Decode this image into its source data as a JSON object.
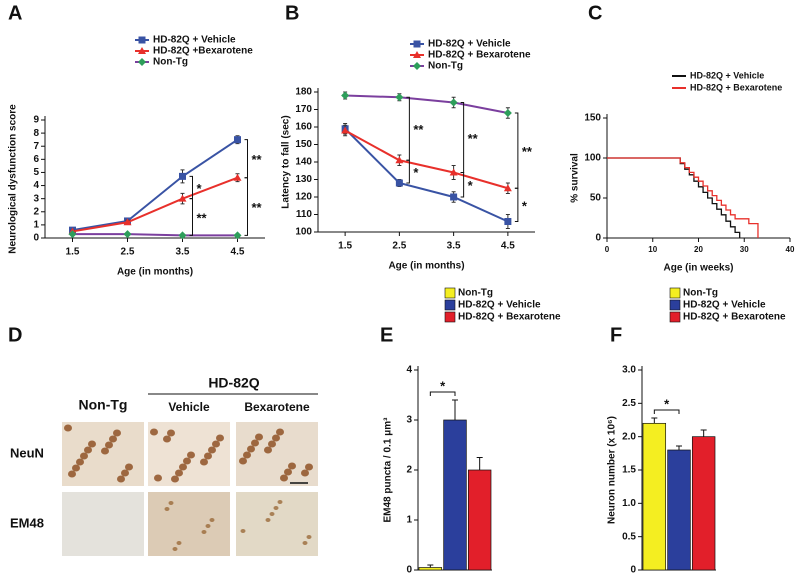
{
  "chart_data": [
    {
      "panel": "A",
      "type": "line",
      "ylabel": "Neurological dysfunction score",
      "xlabel": "Age (in months)",
      "categories": [
        "1.5",
        "2.5",
        "3.5",
        "4.5"
      ],
      "ylim": [
        0,
        9
      ],
      "yticks": [
        0,
        1,
        2,
        3,
        4,
        5,
        6,
        7,
        8,
        9
      ],
      "series": [
        {
          "name": "HD-82Q + Vehicle",
          "color": "#3953a4",
          "marker": "square",
          "marker_color": "#3953a4",
          "values": [
            0.6,
            1.3,
            4.7,
            7.5
          ],
          "errors": [
            0.15,
            0.2,
            0.5,
            0.3
          ]
        },
        {
          "name": "HD-82Q +Bexarotene",
          "color": "#e8302b",
          "marker": "triangle",
          "marker_color": "#e8302b",
          "values": [
            0.5,
            1.2,
            3.0,
            4.6
          ],
          "errors": [
            0.1,
            0.15,
            0.4,
            0.3
          ]
        },
        {
          "name": "Non-Tg",
          "color": "#7b3f9e",
          "marker": "diamond",
          "marker_color": "#2e9e5b",
          "values": [
            0.3,
            0.3,
            0.2,
            0.2
          ],
          "errors": [
            0.05,
            0.05,
            0.05,
            0.05
          ]
        }
      ],
      "annotations": [
        "*",
        "**",
        "**",
        "**"
      ]
    },
    {
      "panel": "B",
      "type": "line",
      "ylabel": "Latency to fall (sec)",
      "xlabel": "Age (in months)",
      "categories": [
        "1.5",
        "2.5",
        "3.5",
        "4.5"
      ],
      "ylim": [
        100,
        180
      ],
      "yticks": [
        100,
        110,
        120,
        130,
        140,
        150,
        160,
        170,
        180
      ],
      "series": [
        {
          "name": "HD-82Q + Vehicle",
          "color": "#3953a4",
          "marker": "square",
          "marker_color": "#3953a4",
          "values": [
            159,
            128,
            120,
            106
          ],
          "errors": [
            3,
            2,
            3,
            4
          ]
        },
        {
          "name": "HD-82Q + Bexarotene",
          "color": "#e8302b",
          "marker": "triangle",
          "marker_color": "#e8302b",
          "values": [
            158,
            141,
            134,
            125
          ],
          "errors": [
            3,
            3,
            4,
            3
          ]
        },
        {
          "name": "Non-Tg",
          "color": "#7b3f9e",
          "marker": "diamond",
          "marker_color": "#2e9e5b",
          "values": [
            178,
            177,
            174,
            168
          ],
          "errors": [
            2,
            2,
            3,
            3
          ]
        }
      ],
      "annotations": [
        "**",
        "*",
        "**",
        "*",
        "**",
        "*"
      ]
    },
    {
      "panel": "C",
      "type": "step",
      "ylabel": "% survival",
      "xlabel": "Age (in weeks)",
      "xlim": [
        0,
        40
      ],
      "xticks": [
        0,
        10,
        20,
        30,
        40
      ],
      "ylim": [
        0,
        150
      ],
      "yticks": [
        0,
        50,
        100,
        150
      ],
      "series": [
        {
          "name": "HD-82Q + Vehicle",
          "color": "#111111",
          "x": [
            0,
            16,
            17,
            18,
            19,
            20,
            21,
            22,
            23,
            24,
            25,
            26,
            27,
            28,
            29
          ],
          "values": [
            100,
            93,
            86,
            79,
            71,
            64,
            57,
            50,
            43,
            36,
            29,
            21,
            14,
            7,
            0
          ]
        },
        {
          "name": "HD-82Q + Bexarotene",
          "color": "#e8302b",
          "x": [
            0,
            16,
            17,
            18,
            19,
            20,
            21,
            22,
            23,
            24,
            25,
            26,
            27,
            28,
            31,
            33
          ],
          "values": [
            100,
            94,
            88,
            82,
            76,
            71,
            65,
            59,
            53,
            47,
            41,
            35,
            29,
            24,
            18,
            0
          ]
        }
      ]
    },
    {
      "panel": "D",
      "type": "micrograph",
      "group": "HD-82Q",
      "columns": [
        "Non-Tg",
        "Vehicle",
        "Bexarotene"
      ],
      "rows": [
        "NeuN",
        "EM48"
      ]
    },
    {
      "panel": "E",
      "type": "bar",
      "ylabel": "EM48 puncta / 0.1 μm³",
      "categories": [
        "Non-Tg",
        "HD-82Q + Vehicle",
        "HD-82Q + Bexarotene"
      ],
      "colors": [
        "#f4ee21",
        "#2b3f9c",
        "#e21f2a"
      ],
      "values": [
        0.05,
        3.0,
        2.0
      ],
      "errors": [
        0.05,
        0.4,
        0.25
      ],
      "ylim": [
        0,
        4
      ],
      "yticks": [
        0,
        1,
        2,
        3,
        4
      ],
      "annotations": [
        "*"
      ]
    },
    {
      "panel": "F",
      "type": "bar",
      "ylabel": "Neuron number  (x 10⁶)",
      "categories": [
        "Non-Tg",
        "HD-82Q + Vehicle",
        "HD-82Q + Bexarotene"
      ],
      "colors": [
        "#f4ee21",
        "#2b3f9c",
        "#e21f2a"
      ],
      "values": [
        2.2,
        1.8,
        2.0
      ],
      "errors": [
        0.08,
        0.06,
        0.1
      ],
      "ylim": [
        0,
        3
      ],
      "yticks": [
        0,
        0.5,
        {
          "value": 1,
          "label": "1.0"
        },
        1.5,
        {
          "value": 2,
          "label": "2.0"
        },
        2.5,
        {
          "value": 3,
          "label": "3.0"
        }
      ],
      "annotations": [
        "*"
      ]
    }
  ]
}
